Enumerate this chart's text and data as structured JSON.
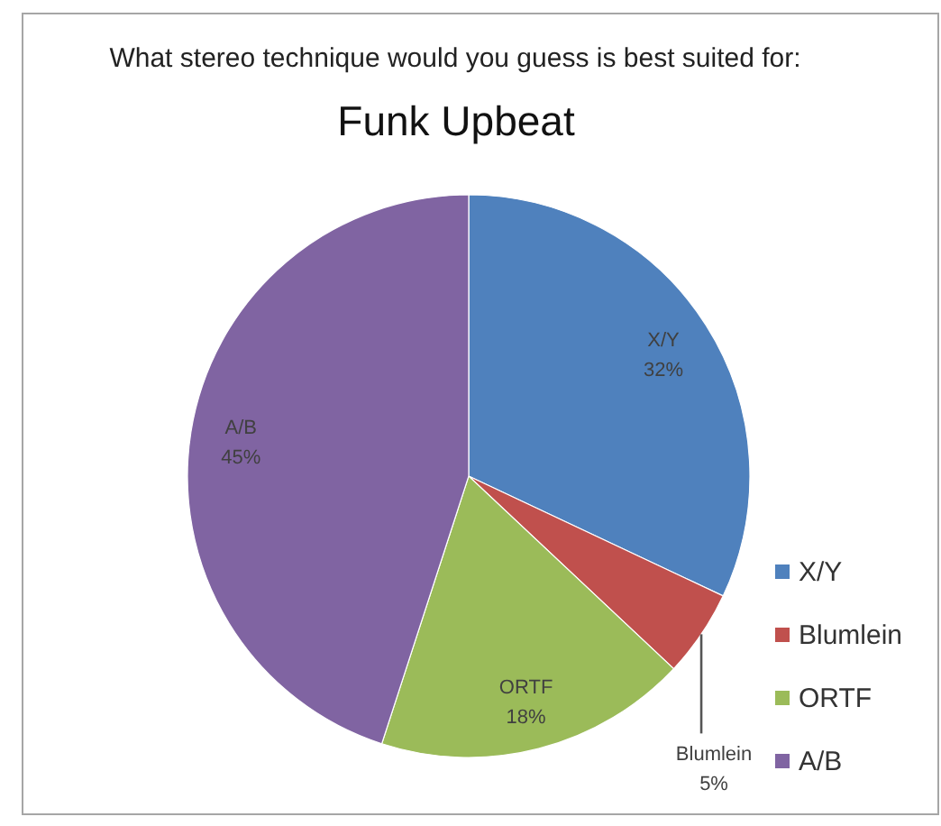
{
  "chart_data": {
    "type": "pie",
    "title": "Funk Upbeat",
    "subtitle": "What stereo technique would you guess is best suited for:",
    "categories": [
      "X/Y",
      "Blumlein",
      "ORTF",
      "A/B"
    ],
    "values": [
      32,
      5,
      18,
      45
    ],
    "colors": [
      "#4f81bd",
      "#c0504d",
      "#9bbb59",
      "#8064a2"
    ],
    "value_labels": [
      "32%",
      "5%",
      "18%",
      "45%"
    ],
    "legend": "bottom right"
  }
}
